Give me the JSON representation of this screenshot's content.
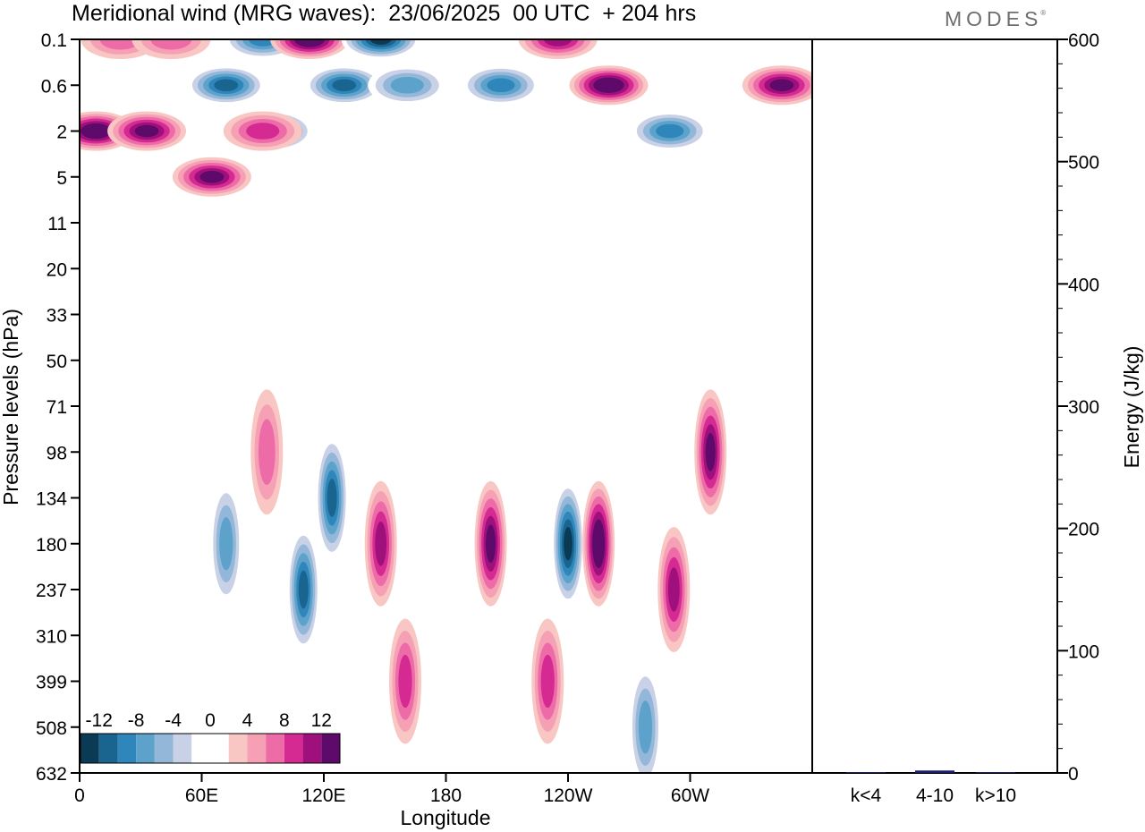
{
  "title": "Meridional wind (MRG waves):  23/06/2025  00 UTC  + 204 hrs",
  "brand": "MODES",
  "brand_mark": "®",
  "chart_data": [
    {
      "type": "heatmap",
      "title": "Meridional wind (MRG waves):  23/06/2025  00 UTC  + 204 hrs",
      "xlabel": "Longitude",
      "ylabel": "Pressure levels (hPa)",
      "x_ticks": [
        "0",
        "60E",
        "120E",
        "180",
        "120W",
        "60W"
      ],
      "y_ticks": [
        "0.1",
        "0.6",
        "2",
        "5",
        "11",
        "20",
        "33",
        "50",
        "71",
        "98",
        "134",
        "180",
        "237",
        "310",
        "399",
        "508",
        "632"
      ],
      "colorbar": {
        "labels": [
          "-12",
          "-8",
          "-4",
          "0",
          "4",
          "8",
          "12"
        ],
        "levels": [
          -14,
          -12,
          -10,
          -8,
          -6,
          -4,
          -2,
          2,
          4,
          6,
          8,
          10,
          12,
          14
        ],
        "colors": [
          "#0b3a55",
          "#19658f",
          "#2f86ba",
          "#5ca2cb",
          "#93b7d8",
          "#c8d1e6",
          "#ffffff",
          "#ffffff",
          "#f9c7c3",
          "#f5a0b5",
          "#ed6ca8",
          "#d42a92",
          "#a0107c",
          "#5e0a6a"
        ]
      },
      "features": [
        {
          "lon": 8,
          "level": "2",
          "value": 14
        },
        {
          "lon": 33,
          "level": "2",
          "value": 12
        },
        {
          "lon": 20,
          "level": "0.1",
          "value": 6
        },
        {
          "lon": 45,
          "level": "0.1",
          "value": 6
        },
        {
          "lon": 72,
          "level": "0.6",
          "value": -12
        },
        {
          "lon": 90,
          "level": "0.1",
          "value": -10
        },
        {
          "lon": 95,
          "level": "2",
          "value": -14
        },
        {
          "lon": 113,
          "level": "0.1",
          "value": 14
        },
        {
          "lon": 130,
          "level": "0.6",
          "value": -12
        },
        {
          "lon": 148,
          "level": "0.1",
          "value": -14
        },
        {
          "lon": 161,
          "level": "0.6",
          "value": -8
        },
        {
          "lon": 207,
          "level": "0.6",
          "value": -10
        },
        {
          "lon": 235,
          "level": "0.1",
          "value": 10
        },
        {
          "lon": 260,
          "level": "0.6",
          "value": 14
        },
        {
          "lon": 290,
          "level": "2",
          "value": -10
        },
        {
          "lon": 345,
          "level": "0.6",
          "value": 12
        },
        {
          "lon": 65,
          "level": "5",
          "value": 12
        },
        {
          "lon": 90,
          "level": "2",
          "value": 8
        },
        {
          "lon": 72,
          "level": "180",
          "value": -8
        },
        {
          "lon": 110,
          "level": "237",
          "value": -12
        },
        {
          "lon": 124,
          "level": "134",
          "value": -12
        },
        {
          "lon": 148,
          "level": "180",
          "value": 10
        },
        {
          "lon": 202,
          "level": "180",
          "value": 12
        },
        {
          "lon": 240,
          "level": "180",
          "value": -14
        },
        {
          "lon": 255,
          "level": "180",
          "value": 14
        },
        {
          "lon": 292,
          "level": "237",
          "value": 10
        },
        {
          "lon": 310,
          "level": "98",
          "value": 12
        },
        {
          "lon": 92,
          "level": "98",
          "value": 6
        },
        {
          "lon": 160,
          "level": "399",
          "value": 8
        },
        {
          "lon": 230,
          "level": "399",
          "value": 8
        },
        {
          "lon": 278,
          "level": "508",
          "value": -8
        }
      ]
    },
    {
      "type": "bar",
      "ylabel": "Energy (J/kg)",
      "categories": [
        "k<4",
        "4-10",
        "k>10"
      ],
      "values": [
        0.5,
        2,
        0.3
      ],
      "ylim": [
        0,
        600
      ],
      "y_ticks": [
        "0",
        "100",
        "200",
        "300",
        "400",
        "500",
        "600"
      ],
      "bar_color": "#1a1a6e"
    }
  ]
}
